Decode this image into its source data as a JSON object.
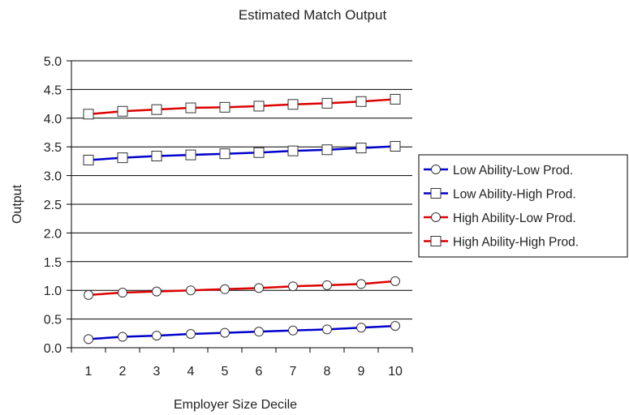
{
  "chart_data": {
    "type": "line",
    "title": "Estimated Match Output",
    "xlabel": "Employer Size Decile",
    "ylabel": "Output",
    "x": [
      1,
      2,
      3,
      4,
      5,
      6,
      7,
      8,
      9,
      10
    ],
    "x_tick_labels": [
      "1",
      "2",
      "3",
      "4",
      "5",
      "6",
      "7",
      "8",
      "9",
      "10"
    ],
    "ylim": [
      0.0,
      5.0
    ],
    "y_tick_labels": [
      "0.0",
      "0.5",
      "1.0",
      "1.5",
      "2.0",
      "2.5",
      "3.0",
      "3.5",
      "4.0",
      "4.5",
      "5.0"
    ],
    "grid": "horizontal",
    "legend_position": "right",
    "series": [
      {
        "name": "Low Ability-Low Prod.",
        "color": "#0000cc",
        "marker": "circle",
        "values": [
          0.15,
          0.19,
          0.21,
          0.24,
          0.26,
          0.28,
          0.3,
          0.32,
          0.35,
          0.38
        ]
      },
      {
        "name": "Low Ability-High Prod.",
        "color": "#0000cc",
        "marker": "square",
        "values": [
          3.27,
          3.31,
          3.34,
          3.36,
          3.38,
          3.4,
          3.43,
          3.45,
          3.48,
          3.51
        ]
      },
      {
        "name": "High Ability-Low Prod.",
        "color": "#dd0000",
        "marker": "circle",
        "values": [
          0.92,
          0.96,
          0.98,
          1.0,
          1.02,
          1.04,
          1.07,
          1.09,
          1.11,
          1.16
        ]
      },
      {
        "name": "High Ability-High Prod.",
        "color": "#dd0000",
        "marker": "square",
        "values": [
          4.07,
          4.12,
          4.15,
          4.18,
          4.19,
          4.21,
          4.24,
          4.26,
          4.29,
          4.33
        ]
      }
    ]
  }
}
